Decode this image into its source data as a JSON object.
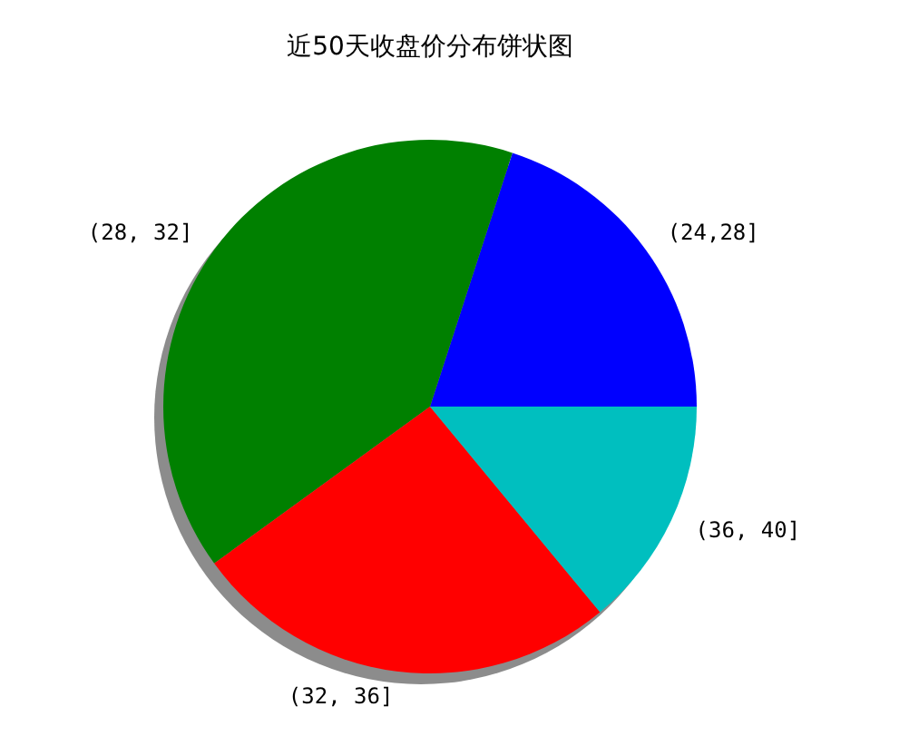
{
  "chart_data": {
    "type": "pie",
    "title": "近50天收盘价分布饼状图",
    "categories": [
      "(24,28]",
      "(28, 32]",
      "(32, 36]",
      "(36, 40]"
    ],
    "values": [
      20,
      40,
      26,
      14
    ],
    "colors": [
      "#0000ff",
      "#008000",
      "#ff0000",
      "#00bfbf"
    ]
  }
}
